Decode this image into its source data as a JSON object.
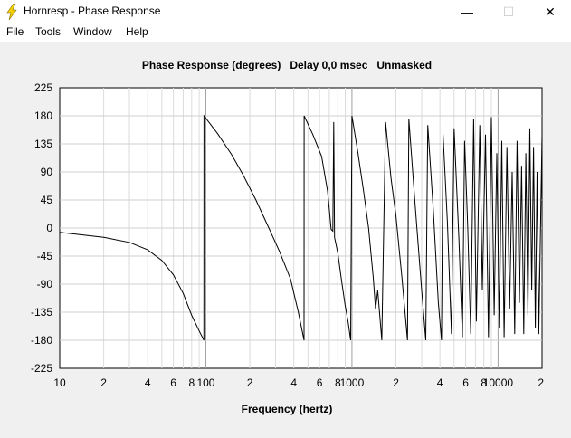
{
  "window": {
    "title": "Hornresp - Phase Response",
    "minimize_glyph": "—",
    "maximize_glyph": "☐",
    "close_glyph": "✕",
    "icon": "lightning-bolt-icon"
  },
  "menu": {
    "items": [
      "File",
      "Tools",
      "Window",
      "Help"
    ]
  },
  "chart_data": {
    "type": "line",
    "title": "Phase Response (degrees)   Delay 0,0 msec   Unmasked",
    "xlabel": "Frequency (hertz)",
    "ylabel": "",
    "x_scale": "log",
    "xlim": [
      10,
      20000
    ],
    "ylim": [
      -225,
      225
    ],
    "y_ticks": [
      225,
      180,
      135,
      90,
      45,
      0,
      -45,
      -90,
      -135,
      -180,
      -225
    ],
    "x_tick_labels": [
      {
        "value": 10,
        "label": "10"
      },
      {
        "value": 20,
        "label": "2"
      },
      {
        "value": 40,
        "label": "4"
      },
      {
        "value": 60,
        "label": "6"
      },
      {
        "value": 80,
        "label": "8"
      },
      {
        "value": 100,
        "label": "100"
      },
      {
        "value": 200,
        "label": "2"
      },
      {
        "value": 400,
        "label": "4"
      },
      {
        "value": 600,
        "label": "6"
      },
      {
        "value": 800,
        "label": "8"
      },
      {
        "value": 1000,
        "label": "1000"
      },
      {
        "value": 2000,
        "label": "2"
      },
      {
        "value": 4000,
        "label": "4"
      },
      {
        "value": 6000,
        "label": "6"
      },
      {
        "value": 8000,
        "label": "8"
      },
      {
        "value": 10000,
        "label": "10000"
      },
      {
        "value": 20000,
        "label": "2"
      }
    ],
    "grid": true,
    "line_color": "#000000",
    "series": [
      {
        "points": [
          [
            10,
            -7
          ],
          [
            20,
            -15
          ],
          [
            30,
            -23
          ],
          [
            40,
            -35
          ],
          [
            50,
            -52
          ],
          [
            60,
            -75
          ],
          [
            70,
            -105
          ],
          [
            80,
            -140
          ],
          [
            90,
            -165
          ],
          [
            97,
            -180
          ],
          [
            97.1,
            180
          ],
          [
            120,
            152
          ],
          [
            150,
            118
          ],
          [
            180,
            85
          ],
          [
            220,
            45
          ],
          [
            270,
            0
          ],
          [
            320,
            -38
          ],
          [
            380,
            -82
          ],
          [
            430,
            -135
          ],
          [
            470,
            -180
          ],
          [
            470.5,
            180
          ],
          [
            540,
            150
          ],
          [
            620,
            115
          ],
          [
            680,
            60
          ],
          [
            700,
            30
          ],
          [
            720,
            -2
          ],
          [
            740,
            -5
          ],
          [
            750,
            170
          ],
          [
            760,
            -15
          ],
          [
            800,
            -40
          ],
          [
            850,
            -85
          ],
          [
            900,
            -125
          ],
          [
            940,
            -150
          ],
          [
            980,
            -180
          ],
          [
            1000,
            180
          ],
          [
            1100,
            120
          ],
          [
            1200,
            60
          ],
          [
            1300,
            0
          ],
          [
            1400,
            -80
          ],
          [
            1450,
            -130
          ],
          [
            1500,
            -100
          ],
          [
            1600,
            -180
          ],
          [
            1700,
            170
          ],
          [
            1850,
            80
          ],
          [
            2000,
            20
          ],
          [
            2200,
            -80
          ],
          [
            2400,
            -180
          ],
          [
            2450,
            175
          ],
          [
            2700,
            40
          ],
          [
            3000,
            -100
          ],
          [
            3200,
            -180
          ],
          [
            3300,
            165
          ],
          [
            3600,
            30
          ],
          [
            3900,
            -120
          ],
          [
            4100,
            -180
          ],
          [
            4200,
            150
          ],
          [
            4500,
            10
          ],
          [
            4800,
            -170
          ],
          [
            5000,
            160
          ],
          [
            5400,
            -20
          ],
          [
            5700,
            -175
          ],
          [
            5900,
            140
          ],
          [
            6200,
            0
          ],
          [
            6500,
            -170
          ],
          [
            6800,
            175
          ],
          [
            7100,
            -150
          ],
          [
            7500,
            165
          ],
          [
            7800,
            -100
          ],
          [
            8200,
            150
          ],
          [
            8600,
            -175
          ],
          [
            9000,
            178
          ],
          [
            9400,
            -140
          ],
          [
            9800,
            120
          ],
          [
            10200,
            -160
          ],
          [
            10600,
            140
          ],
          [
            11000,
            -175
          ],
          [
            11500,
            130
          ],
          [
            12000,
            -130
          ],
          [
            12500,
            90
          ],
          [
            13000,
            -170
          ],
          [
            13500,
            140
          ],
          [
            14000,
            -120
          ],
          [
            14500,
            100
          ],
          [
            15000,
            -170
          ],
          [
            15500,
            120
          ],
          [
            16000,
            -140
          ],
          [
            16500,
            160
          ],
          [
            17000,
            -100
          ],
          [
            17500,
            130
          ],
          [
            18000,
            -160
          ],
          [
            18500,
            90
          ],
          [
            19000,
            -170
          ],
          [
            20000,
            150
          ]
        ]
      }
    ]
  }
}
